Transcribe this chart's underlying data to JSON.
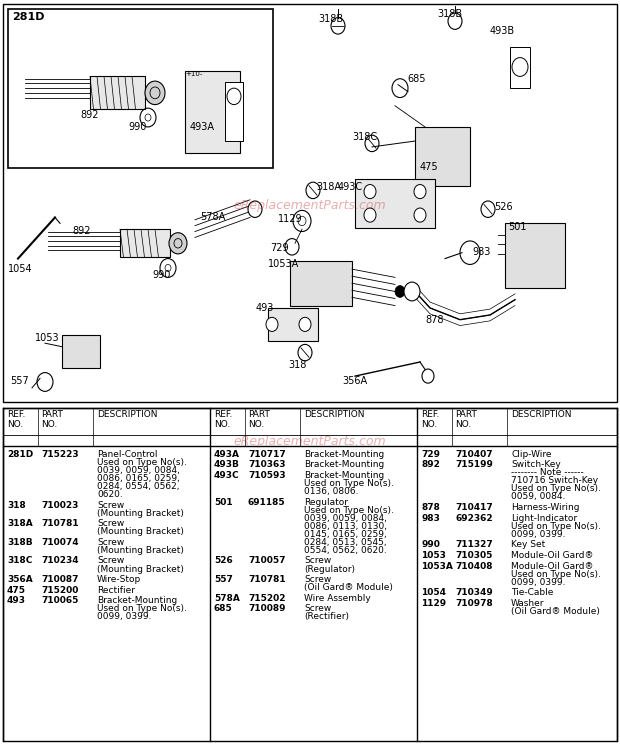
{
  "bg_color": "#ffffff",
  "watermark": "eReplacementParts.com",
  "watermark_color": "#cc3333",
  "watermark_alpha": 0.4,
  "parts_table": {
    "col1": [
      {
        "ref": "281D",
        "part": "715223",
        "desc": "Panel-Control\nUsed on Type No(s).\n0039, 0059, 0084,\n0086, 0165, 0259,\n0284, 0554, 0562,\n0620."
      },
      {
        "ref": "318",
        "part": "710023",
        "desc": "Screw\n(Mounting Bracket)"
      },
      {
        "ref": "318A",
        "part": "710781",
        "desc": "Screw\n(Mounting Bracket)"
      },
      {
        "ref": "318B",
        "part": "710074",
        "desc": "Screw\n(Mounting Bracket)"
      },
      {
        "ref": "318C",
        "part": "710234",
        "desc": "Screw\n(Mounting Bracket)"
      },
      {
        "ref": "356A",
        "part": "710087",
        "desc": "Wire-Stop"
      },
      {
        "ref": "475",
        "part": "715200",
        "desc": "Rectifier"
      },
      {
        "ref": "493",
        "part": "710065",
        "desc": "Bracket-Mounting\nUsed on Type No(s).\n0099, 0399."
      }
    ],
    "col2": [
      {
        "ref": "493A",
        "part": "710717",
        "desc": "Bracket-Mounting"
      },
      {
        "ref": "493B",
        "part": "710363",
        "desc": "Bracket-Mounting"
      },
      {
        "ref": "493C",
        "part": "710593",
        "desc": "Bracket-Mounting\nUsed on Type No(s).\n0136, 0806."
      },
      {
        "ref": "501",
        "part": "691185",
        "desc": "Regulator\nUsed on Type No(s).\n0039, 0059, 0084,\n0086, 0113, 0130,\n0145, 0165, 0259,\n0284, 0513, 0545,\n0554, 0562, 0620."
      },
      {
        "ref": "526",
        "part": "710057",
        "desc": "Screw\n(Regulator)"
      },
      {
        "ref": "557",
        "part": "710781",
        "desc": "Screw\n(Oil Gard® Module)"
      },
      {
        "ref": "578A",
        "part": "715202",
        "desc": "Wire Assembly"
      },
      {
        "ref": "685",
        "part": "710089",
        "desc": "Screw\n(Rectifier)"
      }
    ],
    "col3": [
      {
        "ref": "729",
        "part": "710407",
        "desc": "Clip-Wire"
      },
      {
        "ref": "892",
        "part": "715199",
        "desc": "Switch-Key\n-------- Note ------\n710716 Switch-Key\nUsed on Type No(s).\n0059, 0084."
      },
      {
        "ref": "878",
        "part": "710417",
        "desc": "Harness-Wiring"
      },
      {
        "ref": "983",
        "part": "692362",
        "desc": "Light-Indicator\nUsed on Type No(s).\n0099, 0399."
      },
      {
        "ref": "990",
        "part": "711327",
        "desc": "Key Set"
      },
      {
        "ref": "1053",
        "part": "710305",
        "desc": "Module-Oil Gard®"
      },
      {
        "ref": "1053A",
        "part": "710408",
        "desc": "Module-Oil Gard®\nUsed on Type No(s).\n0099, 0399."
      },
      {
        "ref": "1054",
        "part": "710349",
        "desc": "Tie-Cable"
      },
      {
        "ref": "1129",
        "part": "710978",
        "desc": "Washer\n(Oil Gard® Module)"
      }
    ]
  }
}
